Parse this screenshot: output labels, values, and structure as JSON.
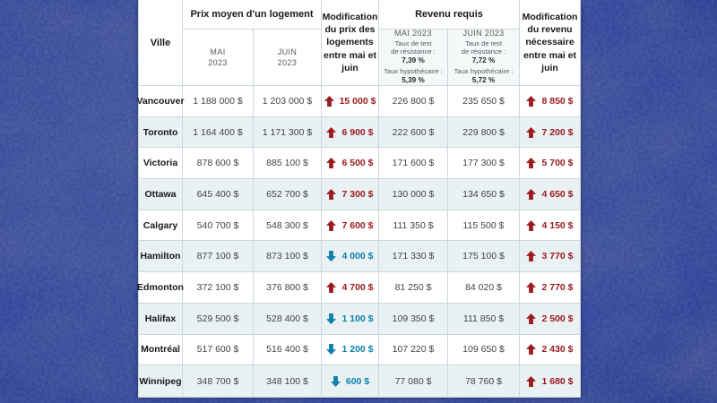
{
  "colors": {
    "up_red": "#9b1b20",
    "down_blue": "#0e81ab",
    "alt_row": "#e9f1f3",
    "grid_line": "#ccd8dc",
    "background_blue": "#35499a"
  },
  "header": {
    "city": "Ville",
    "price_group": "Prix moyen d'un logement",
    "price_may": {
      "line1": "MAI",
      "line2": "2023"
    },
    "price_june": {
      "line1": "JUIN",
      "line2": "2023"
    },
    "price_change": "Modification du prix des logements entre mai et juin",
    "income_group": "Revenu requis",
    "income_may": {
      "month": "MAI 2023",
      "stress_line1": "Taux de test",
      "stress_line2": "de résistance :",
      "stress_value": "7,39 %",
      "mortgage_label": "Taux hypothécaire :",
      "mortgage_value": "5,39 %"
    },
    "income_june": {
      "month": "JUIN 2023",
      "stress_line1": "Taux de test",
      "stress_line2": "de résistance :",
      "stress_value": "7,72 %",
      "mortgage_label": "Taux hypothécaire :",
      "mortgage_value": "5,72 %"
    },
    "income_change": "Modification du revenu nécessaire entre mai et juin"
  },
  "table": {
    "rows": [
      {
        "city": "Vancouver",
        "price_may": "1 188 000 $",
        "price_june": "1 203 000 $",
        "price_change": "15 000 $",
        "price_change_dir": "up",
        "income_may": "226 800 $",
        "income_june": "235 650 $",
        "income_change": "8 850 $",
        "income_change_dir": "up"
      },
      {
        "city": "Toronto",
        "price_may": "1 164 400 $",
        "price_june": "1 171 300 $",
        "price_change": "6 900 $",
        "price_change_dir": "up",
        "income_may": "222 600 $",
        "income_june": "229 800 $",
        "income_change": "7 200 $",
        "income_change_dir": "up"
      },
      {
        "city": "Victoria",
        "price_may": "878 600 $",
        "price_june": "885 100 $",
        "price_change": "6 500 $",
        "price_change_dir": "up",
        "income_may": "171 600 $",
        "income_june": "177 300 $",
        "income_change": "5 700 $",
        "income_change_dir": "up"
      },
      {
        "city": "Ottawa",
        "price_may": "645 400 $",
        "price_june": "652 700 $",
        "price_change": "7 300 $",
        "price_change_dir": "up",
        "income_may": "130 000 $",
        "income_june": "134 650 $",
        "income_change": "4 650 $",
        "income_change_dir": "up"
      },
      {
        "city": "Calgary",
        "price_may": "540 700 $",
        "price_june": "548 300 $",
        "price_change": "7 600 $",
        "price_change_dir": "up",
        "income_may": "111 350 $",
        "income_june": "115 500 $",
        "income_change": "4 150 $",
        "income_change_dir": "up"
      },
      {
        "city": "Hamilton",
        "price_may": "877 100 $",
        "price_june": "873 100 $",
        "price_change": "4 000 $",
        "price_change_dir": "down",
        "income_may": "171 330 $",
        "income_june": "175 100 $",
        "income_change": "3 770 $",
        "income_change_dir": "up"
      },
      {
        "city": "Edmonton",
        "price_may": "372 100 $",
        "price_june": "376 800 $",
        "price_change": "4 700 $",
        "price_change_dir": "up",
        "income_may": "81 250 $",
        "income_june": "84 020 $",
        "income_change": "2 770 $",
        "income_change_dir": "up"
      },
      {
        "city": "Halifax",
        "price_may": "529 500 $",
        "price_june": "528 400 $",
        "price_change": "1 100 $",
        "price_change_dir": "down",
        "income_may": "109 350 $",
        "income_june": "111 850 $",
        "income_change": "2 500 $",
        "income_change_dir": "up"
      },
      {
        "city": "Montréal",
        "price_may": "517 600 $",
        "price_june": "516 400 $",
        "price_change": "1 200 $",
        "price_change_dir": "down",
        "income_may": "107 220 $",
        "income_june": "109 650 $",
        "income_change": "2 430 $",
        "income_change_dir": "up"
      },
      {
        "city": "Winnipeg",
        "price_may": "348 700 $",
        "price_june": "348 100 $",
        "price_change": "600 $",
        "price_change_dir": "down",
        "income_may": "77 080 $",
        "income_june": "78 760 $",
        "income_change": "1 680 $",
        "income_change_dir": "up"
      }
    ]
  },
  "chart_data": {
    "type": "table",
    "title": "Prix moyen d'un logement et revenu requis, mai vs juin 2023",
    "stress_test_rate": {
      "may_2023": 7.39,
      "june_2023": 7.72
    },
    "mortgage_rate": {
      "may_2023": 5.39,
      "june_2023": 5.72
    },
    "columns": [
      "Ville",
      "Prix moyen MAI 2023 ($)",
      "Prix moyen JUIN 2023 ($)",
      "Modification du prix ($)",
      "Revenu requis MAI 2023 ($)",
      "Revenu requis JUIN 2023 ($)",
      "Modification du revenu ($)"
    ],
    "rows": [
      [
        "Vancouver",
        1188000,
        1203000,
        15000,
        226800,
        235650,
        8850
      ],
      [
        "Toronto",
        1164400,
        1171300,
        6900,
        222600,
        229800,
        7200
      ],
      [
        "Victoria",
        878600,
        885100,
        6500,
        171600,
        177300,
        5700
      ],
      [
        "Ottawa",
        645400,
        652700,
        7300,
        130000,
        134650,
        4650
      ],
      [
        "Calgary",
        540700,
        548300,
        7600,
        111350,
        115500,
        4150
      ],
      [
        "Hamilton",
        877100,
        873100,
        -4000,
        171330,
        175100,
        3770
      ],
      [
        "Edmonton",
        372100,
        376800,
        4700,
        81250,
        84020,
        2770
      ],
      [
        "Halifax",
        529500,
        528400,
        -1100,
        109350,
        111850,
        2500
      ],
      [
        "Montréal",
        517600,
        516400,
        -1200,
        107220,
        109650,
        2430
      ],
      [
        "Winnipeg",
        348700,
        348100,
        -600,
        77080,
        78760,
        1680
      ]
    ]
  }
}
